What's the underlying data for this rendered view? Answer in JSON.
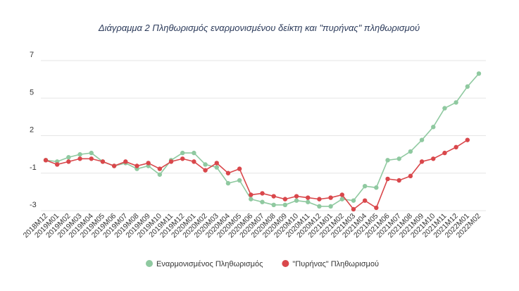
{
  "chart_data": {
    "type": "line",
    "title": "Διάγραμμα 2 Πληθωρισμός εναρμονισμένου δείκτη και \"πυρήνας\" πληθωρισμού",
    "categories": [
      "2018M12",
      "2019M01",
      "2019M02",
      "2019M03",
      "2019M04",
      "2019M05",
      "2019M06",
      "2019M07",
      "2019M08",
      "2019M09",
      "2019M10",
      "2019M11",
      "2019M12",
      "2020M01",
      "2020M02",
      "2020M03",
      "2020M04",
      "2020M05",
      "2020M06",
      "2020M07",
      "2020M08",
      "2020M09",
      "2020M10",
      "2020M11",
      "2020M12",
      "2021M01",
      "2021M02",
      "2021M03",
      "2021M04",
      "2021M05",
      "2021M06",
      "2021M07",
      "2021M08",
      "2021M09",
      "2021M10",
      "2021M11",
      "2021M12",
      "2022M01",
      "2022M02"
    ],
    "series": [
      {
        "name": "Εναρμονισμένος Πληθωρισμός",
        "color": "#8fc9a0",
        "values": [
          0.3,
          0.2,
          0.5,
          0.7,
          0.8,
          0.2,
          -0.1,
          0.1,
          -0.3,
          -0.1,
          -0.7,
          0.3,
          0.8,
          0.8,
          0.0,
          -0.2,
          -1.3,
          -1.1,
          -2.4,
          -2.6,
          -2.8,
          -2.8,
          -2.5,
          -2.6,
          -2.9,
          -2.9,
          -2.4,
          -2.5,
          -1.5,
          -1.6,
          0.3,
          0.4,
          0.9,
          1.7,
          2.6,
          3.9,
          4.3,
          5.4,
          6.3
        ]
      },
      {
        "name": "\"Πυρήνας\" Πληθωρισμού",
        "color": "#d9474b",
        "values": [
          0.3,
          0.0,
          0.2,
          0.4,
          0.4,
          0.2,
          -0.1,
          0.2,
          -0.1,
          0.1,
          -0.3,
          0.2,
          0.4,
          0.2,
          -0.4,
          0.1,
          -0.6,
          -0.3,
          -2.1,
          -2.0,
          -2.2,
          -2.4,
          -2.2,
          -2.3,
          -2.4,
          -2.3,
          -2.1,
          -3.1,
          -2.5,
          -3.0,
          -1.0,
          -1.1,
          -0.8,
          0.2,
          0.4,
          0.8,
          1.2,
          1.7,
          null
        ]
      }
    ],
    "ylim": [
      -3.2,
      7.2
    ],
    "yticks": [
      {
        "value": -3.2,
        "label": "-3"
      },
      {
        "value": -0.6,
        "label": "-1"
      },
      {
        "value": 2.0,
        "label": "2"
      },
      {
        "value": 4.6,
        "label": "5"
      },
      {
        "value": 7.2,
        "label": "7"
      }
    ],
    "grid": true,
    "legend": "bottom"
  }
}
